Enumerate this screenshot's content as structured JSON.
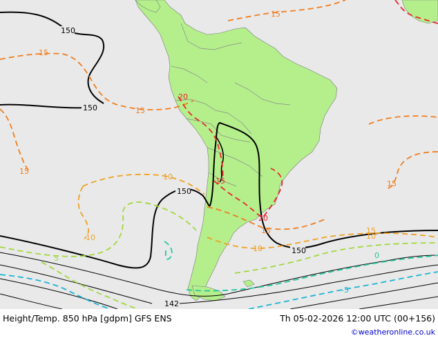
{
  "footer": {
    "title": "Height/Temp. 850 hPa [gdpm] GFS ENS",
    "datetime": "Th 05-02-2026 12:00 UTC (00+156)",
    "credit": "©weatheronline.co.uk"
  },
  "map": {
    "projection": "South America regional",
    "colors": {
      "ocean": "#e9e9e9",
      "land": "#b4ef8c",
      "height_contour": "#000000",
      "temp_20": "#e8262a",
      "temp_15": "#f07d1e",
      "temp_10": "#f0a020",
      "temp_5": "#a0d83c",
      "temp_0": "#20c8a0",
      "temp_neg5": "#18b4d4"
    },
    "height_labels": [
      "150",
      "150",
      "150",
      "150",
      "142"
    ],
    "temp_labels": [
      "15",
      "15",
      "15",
      "15",
      "15",
      "15",
      "15",
      "20",
      "20",
      "15",
      "10",
      "10",
      "10",
      "10",
      "5",
      "0",
      "-5"
    ]
  }
}
